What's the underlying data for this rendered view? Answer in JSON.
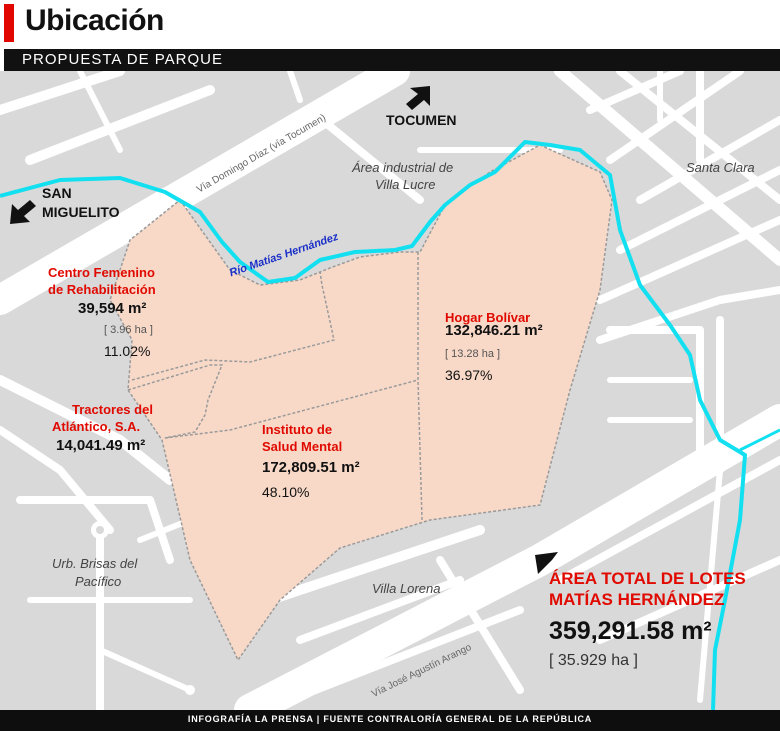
{
  "header": {
    "title": "Ubicación",
    "subtitle": "PROPUESTA DE PARQUE"
  },
  "places": {
    "tocumen": "TOCUMEN",
    "san_miguelito_1": "SAN",
    "san_miguelito_2": "MIGUELITO",
    "area_industrial_1": "Área industrial de",
    "area_industrial_2": "Villa Lucre",
    "santa_clara": "Santa Clara",
    "urb_brisas_1": "Urb. Brisas del",
    "urb_brisas_2": "Pacífico",
    "villa_lorena": "Villa Lorena",
    "rio": "Río Matías Hernández",
    "via_domingo": "Vía Domingo Díaz (vía Tocumen)",
    "via_jose": "Vía José Agustín Arango"
  },
  "lots": {
    "centro": {
      "name_1": "Centro Femenino",
      "name_2": "de Rehabilitación",
      "area": "39,594 m²",
      "ha": "[ 3.96 ha ]",
      "pct": "11.02%"
    },
    "tractores": {
      "name_1": "Tractores del",
      "name_2": "Atlántico, S.A.",
      "area": "14,041.49 m²"
    },
    "instituto": {
      "name_1": "Instituto de",
      "name_2": "Salud Mental",
      "area": "172,809.51 m²",
      "pct": "48.10%"
    },
    "hogar": {
      "name": "Hogar Bolívar",
      "area": "132,846.21 m²",
      "ha": "[ 13.28 ha ]",
      "pct": "36.97%"
    }
  },
  "total": {
    "title_1": "ÁREA TOTAL DE LOTES",
    "title_2": "MATÍAS HERNÁNDEZ",
    "value": "359,291.58 m²",
    "ha": "[ 35.929 ha ]"
  },
  "footer": {
    "text": "INFOGRAFÍA LA PRENSA  |  FUENTE CONTRALORÍA GENERAL DE LA REPÚBLICA"
  },
  "colors": {
    "lot_fill": "#f8d9c8",
    "river": "#12e0f0",
    "accent_red": "#e10600"
  }
}
